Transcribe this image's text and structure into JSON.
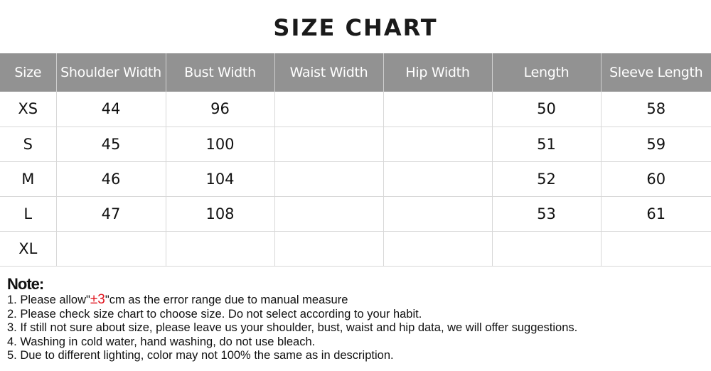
{
  "title": "SIZE CHART",
  "columns": [
    "Size",
    "Shoulder Width",
    "Bust Width",
    "Waist Width",
    "Hip Width",
    "Length",
    "Sleeve Length"
  ],
  "rows": [
    [
      "XS",
      "44",
      "96",
      "",
      "",
      "50",
      "58"
    ],
    [
      "S",
      "45",
      "100",
      "",
      "",
      "51",
      "59"
    ],
    [
      "M",
      "46",
      "104",
      "",
      "",
      "52",
      "60"
    ],
    [
      "L",
      "47",
      "108",
      "",
      "",
      "53",
      "61"
    ],
    [
      "XL",
      "",
      "",
      "",
      "",
      "",
      ""
    ]
  ],
  "notes": {
    "title": "Note:",
    "line1_pre": "1. Please allow\"",
    "line1_red": "±3",
    "line1_post": "\"cm as the error range due to manual measure",
    "lines": [
      "2. Please check size chart to choose size. Do not select according to your habit.",
      "3. If still not sure about size, please leave us your shoulder, bust, waist and hip data, we will offer suggestions.",
      "4. Washing in cold water, hand washing, do not use bleach.",
      "5. Due to different lighting, color may not 100% the same as in description."
    ]
  },
  "colors": {
    "header_bg": "#929292",
    "accent_red": "#e0141e"
  }
}
